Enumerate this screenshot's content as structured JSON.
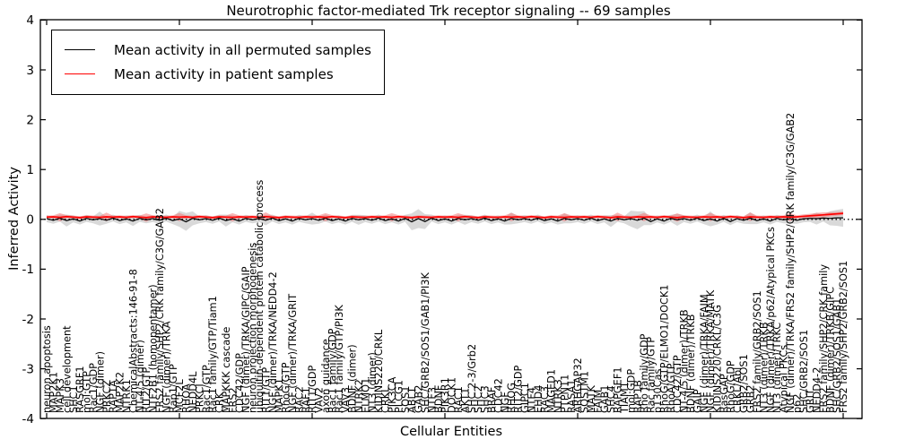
{
  "figure": {
    "title": "Neurotrophic factor-mediated Trk receptor signaling -- 69 samples",
    "xlabel": "Cellular Entities",
    "ylabel": "Inferred Activity"
  },
  "legend": {
    "entries": [
      {
        "label": "Mean activity in all permuted samples",
        "color": "#000000"
      },
      {
        "label": "Mean activity in patient samples",
        "color": "#ff0000"
      }
    ]
  },
  "colors": {
    "permuted_line": "#000000",
    "patient_line": "#ff0000",
    "permuted_band": "#d9d9d9",
    "patient_band": "#f07070",
    "zero_line": "#000000",
    "axis": "#000000"
  },
  "chart_data": {
    "type": "line",
    "title": "Neurotrophic factor-mediated Trk receptor signaling -- 69 samples",
    "xlabel": "Cellular Entities",
    "ylabel": "Inferred Activity",
    "ylim": [
      -4,
      4
    ],
    "yticks": [
      4,
      3,
      2,
      1,
      0,
      -1,
      -2,
      -3,
      -4
    ],
    "xticks": [
      0,
      20,
      40,
      60,
      80,
      100,
      120
    ],
    "grid": false,
    "zero_line_dotted": true,
    "legend_position": "upper left",
    "categories": [
      "neuron apoptosis",
      "MAP2K1",
      "MAPK3",
      "cell development",
      "SHC1",
      "RASGRF1",
      "mol:GTP",
      "Rac1/GDP",
      "NGF (dimer)",
      "PRKCZ",
      "RAP1A",
      "MAP2K2",
      "NTRK1",
      "ChemicalAbstracts:146-91-8",
      "NT-4/5 (dimer)",
      "RIT2/GTP",
      "NTF2B1 (homopentamer)",
      "FRS2 family/SHP2/CRK family/C3G/GAB2",
      "NGF (dimer)/TRKA",
      "Rap1/GTP",
      "MCF2L",
      "RHOA",
      "NEDD4L",
      "PRKCI",
      "Rac1/GTP",
      "Rac1 family/GTP/Tiam1",
      "CRK",
      "MAPKKK cascade",
      "FRS2",
      "CDC42/GDP",
      "NGF (dimer)/TRKA/GIPC/GAIP",
      "neuron projection morphogenesis",
      "ubiquitin-dependent protein catabolic process",
      "RIT1/GTP",
      "NGF (dimer)/TRKA/NEDD4-2",
      "MAPK1",
      "RhoG/GTP",
      "NGF (dimer)/TRKA/GRIT",
      "RAC2",
      "RAF1",
      "RIT1/GDP",
      "VAV2",
      "axon guidance",
      "Rac1 family/GDP",
      "Rac1 family/GTP/PI3K",
      "VAV3",
      "BDNF (dimer)",
      "NTRK2",
      "ELMO1",
      "NT3 (dimer)",
      "KIDINS220/CRKL",
      "CRKL",
      "PIK3CA",
      "PLCG1",
      "SOS1",
      "ABL1",
      "GAB2",
      "SHC/GRB2/SOS1/GAB1/PI3K",
      "NTF3",
      "BDNF",
      "PIK3R1",
      "DOCK1",
      "RAC1",
      "AKT1",
      "SHC 2-3/Grb2",
      "SHC2",
      "SHC3",
      "BRAF",
      "CDC42",
      "NGF",
      "RHOG",
      "RIT2/GDP",
      "GIPC1",
      "NTF4",
      "EHD4",
      "RAC3",
      "MAGED1",
      "NTRK3",
      "PTPN11",
      "RASA1",
      "ARHGAP32",
      "SQSTM1",
      "MATK",
      "FAIM",
      "GAB1",
      "SHC4",
      "RAPGEF1",
      "TIAM1",
      "mol:GDP",
      "RAP1B",
      "Rho family/GDP",
      "Rac family/GTP",
      "p130Cas",
      "RhoG/GTP/ELMO1/DOCK1",
      "RhoA/GTP",
      "CDC42/GTP",
      "NT-4/5 (dimer)/TRKB",
      "BDNF (dimer)/TRKB",
      "GAIP",
      "NGF (dimer)/TRKA/FAIM",
      "NGF (dimer)/TRKA/MATK",
      "KIDINS220/CRKL/C3G",
      "RasGAP",
      "RhoG/GDP",
      "CRKL/Abl",
      "GRB2/SOS1",
      "GRB2",
      "FRS2 family/GRB2/SOS1",
      "NT3 (dimer)/TRKB",
      "NGF (dimer)/TRKA/p62/Atypical PKCs",
      "NT3 (dimer)/TRKC",
      "Atypical PKCs",
      "NGF (dimer)/TRKA/FRS2 family/SHP2/CRK family/C3G/GAB2",
      "p62",
      "SHC/GRB2/SOS1",
      "GRIT",
      "NEDD4-2",
      "FRS2 family/SHP2/CRK family",
      "BDNF (dimer)/TRKB/GIPC",
      "SHC/GRB2/SOS1/GAB1",
      "FRS2 family/SHP2/GRB2/SOS1"
    ],
    "series": [
      {
        "name": "Mean activity in all permuted samples",
        "color": "#000000",
        "values": [
          0.015,
          -0.02,
          0.025,
          -0.025,
          0.01,
          -0.035,
          0.02,
          -0.01,
          0.015,
          -0.02,
          0.025,
          -0.025,
          0.01,
          -0.035,
          0.02,
          -0.01,
          0.015,
          -0.02,
          0.025,
          -0.025,
          0.01,
          -0.05,
          0.02,
          -0.01,
          0.015,
          -0.02,
          0.025,
          -0.025,
          0.01,
          -0.035,
          0.02,
          -0.01,
          0.015,
          -0.02,
          0.025,
          -0.025,
          0.01,
          -0.035,
          0.02,
          -0.01,
          0.015,
          -0.02,
          0.025,
          -0.025,
          0.01,
          -0.035,
          0.02,
          -0.01,
          0.015,
          -0.02,
          0.025,
          -0.025,
          0.01,
          -0.035,
          0.02,
          -0.05,
          0.015,
          -0.045,
          0.025,
          -0.025,
          0.01,
          -0.035,
          0.02,
          -0.01,
          0.015,
          -0.02,
          0.025,
          -0.025,
          0.01,
          -0.035,
          0.02,
          -0.01,
          0.015,
          -0.02,
          0.025,
          -0.025,
          0.01,
          -0.035,
          0.02,
          -0.01,
          0.015,
          -0.02,
          0.025,
          -0.025,
          0.01,
          -0.035,
          0.02,
          -0.01,
          0.015,
          -0.02,
          0.025,
          -0.045,
          0.01,
          -0.035,
          0.02,
          -0.01,
          0.015,
          -0.02,
          0.025,
          -0.025,
          0.01,
          -0.035,
          0.02,
          -0.045,
          0.015,
          -0.02,
          0.025,
          -0.025,
          0.01,
          -0.035,
          0.02,
          -0.01,
          0.015,
          -0.02,
          0.01,
          0.02,
          0.015,
          0.025,
          0.02,
          0.03,
          0.03
        ]
      },
      {
        "name": "Mean activity in patient samples",
        "color": "#ff0000",
        "values": [
          0.045,
          0.05,
          0.04,
          0.055,
          0.045,
          0.035,
          0.05,
          0.045,
          0.04,
          0.05,
          0.045,
          0.05,
          0.04,
          0.055,
          0.045,
          0.035,
          0.05,
          0.045,
          0.04,
          0.05,
          0.045,
          0.05,
          0.04,
          0.055,
          0.045,
          0.035,
          0.05,
          0.045,
          0.04,
          0.05,
          0.045,
          0.05,
          0.04,
          0.055,
          0.045,
          0.035,
          0.05,
          0.045,
          0.04,
          0.05,
          0.045,
          0.05,
          0.04,
          0.055,
          0.045,
          0.035,
          0.05,
          0.045,
          0.04,
          0.05,
          0.045,
          0.05,
          0.04,
          0.055,
          0.045,
          0.035,
          0.05,
          0.045,
          0.04,
          0.05,
          0.045,
          0.05,
          0.04,
          0.055,
          0.045,
          0.035,
          0.05,
          0.045,
          0.04,
          0.05,
          0.045,
          0.05,
          0.04,
          0.055,
          0.045,
          0.035,
          0.05,
          0.045,
          0.04,
          0.05,
          0.045,
          0.05,
          0.04,
          0.055,
          0.045,
          0.035,
          0.05,
          0.045,
          0.04,
          0.05,
          0.045,
          0.05,
          0.04,
          0.055,
          0.045,
          0.035,
          0.05,
          0.045,
          0.04,
          0.05,
          0.045,
          0.05,
          0.04,
          0.055,
          0.045,
          0.035,
          0.05,
          0.045,
          0.04,
          0.05,
          0.045,
          0.05,
          0.045,
          0.05,
          0.06,
          0.07,
          0.08,
          0.09,
          0.1,
          0.11,
          0.12
        ]
      }
    ],
    "bands": [
      {
        "series": "Mean activity in all permuted samples",
        "color": "#d9d9d9",
        "opacity": 1,
        "half_widths": [
          0.07,
          0.07,
          0.07,
          0.12,
          0.07,
          0.07,
          0.07,
          0.07,
          0.14,
          0.07,
          0.07,
          0.07,
          0.07,
          0.1,
          0.07,
          0.07,
          0.07,
          0.07,
          0.07,
          0.07,
          0.16,
          0.18,
          0.14,
          0.07,
          0.07,
          0.07,
          0.07,
          0.12,
          0.07,
          0.07,
          0.07,
          0.07,
          0.07,
          0.1,
          0.07,
          0.07,
          0.07,
          0.07,
          0.07,
          0.07,
          0.12,
          0.07,
          0.07,
          0.07,
          0.07,
          0.07,
          0.07,
          0.1,
          0.07,
          0.07,
          0.07,
          0.07,
          0.07,
          0.07,
          0.07,
          0.17,
          0.19,
          0.15,
          0.07,
          0.07,
          0.07,
          0.07,
          0.07,
          0.1,
          0.07,
          0.07,
          0.07,
          0.07,
          0.07,
          0.07,
          0.12,
          0.07,
          0.07,
          0.07,
          0.07,
          0.07,
          0.07,
          0.07,
          0.1,
          0.07,
          0.07,
          0.07,
          0.07,
          0.07,
          0.07,
          0.12,
          0.07,
          0.07,
          0.16,
          0.18,
          0.14,
          0.07,
          0.07,
          0.07,
          0.07,
          0.12,
          0.07,
          0.07,
          0.07,
          0.07,
          0.15,
          0.07,
          0.07,
          0.07,
          0.07,
          0.07,
          0.12,
          0.07,
          0.07,
          0.07,
          0.07,
          0.07,
          0.1,
          0.07,
          0.07,
          0.07,
          0.12,
          0.07,
          0.14,
          0.16,
          0.18
        ]
      },
      {
        "series": "Mean activity in patient samples",
        "color": "#f07070",
        "opacity": 0.5,
        "half_widths": [
          0.03,
          0.03,
          0.085,
          0.03,
          0.03,
          0.03,
          0.03,
          0.03,
          0.03,
          0.085,
          0.03,
          0.03,
          0.03,
          0.03,
          0.03,
          0.085,
          0.03,
          0.03,
          0.03,
          0.03,
          0.085,
          0.03,
          0.03,
          0.03,
          0.03,
          0.03,
          0.03,
          0.03,
          0.085,
          0.03,
          0.03,
          0.03,
          0.03,
          0.085,
          0.03,
          0.03,
          0.03,
          0.03,
          0.03,
          0.03,
          0.03,
          0.03,
          0.085,
          0.03,
          0.03,
          0.03,
          0.03,
          0.03,
          0.03,
          0.03,
          0.03,
          0.03,
          0.085,
          0.03,
          0.03,
          0.03,
          0.03,
          0.03,
          0.03,
          0.03,
          0.03,
          0.03,
          0.085,
          0.03,
          0.03,
          0.03,
          0.03,
          0.03,
          0.03,
          0.03,
          0.085,
          0.03,
          0.03,
          0.03,
          0.03,
          0.03,
          0.03,
          0.03,
          0.085,
          0.03,
          0.03,
          0.03,
          0.03,
          0.03,
          0.03,
          0.03,
          0.085,
          0.03,
          0.03,
          0.03,
          0.085,
          0.03,
          0.03,
          0.03,
          0.03,
          0.085,
          0.03,
          0.03,
          0.03,
          0.03,
          0.085,
          0.03,
          0.03,
          0.03,
          0.03,
          0.03,
          0.085,
          0.03,
          0.03,
          0.03,
          0.03,
          0.03,
          0.085,
          0.03,
          0.04,
          0.04,
          0.05,
          0.05,
          0.045,
          0.04,
          0.035
        ]
      }
    ]
  }
}
